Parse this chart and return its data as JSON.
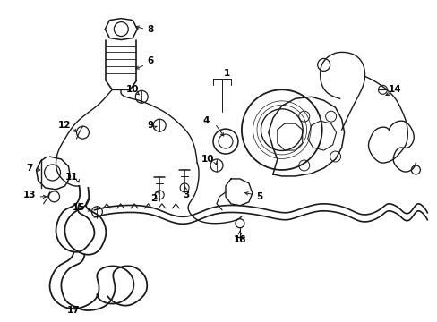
{
  "figsize": [
    4.89,
    3.6
  ],
  "dpi": 100,
  "bg_color": "#ffffff",
  "line_color": "#1a1a1a",
  "label_color": "#000000",
  "label_fs": 7.5,
  "lw": 1.0
}
